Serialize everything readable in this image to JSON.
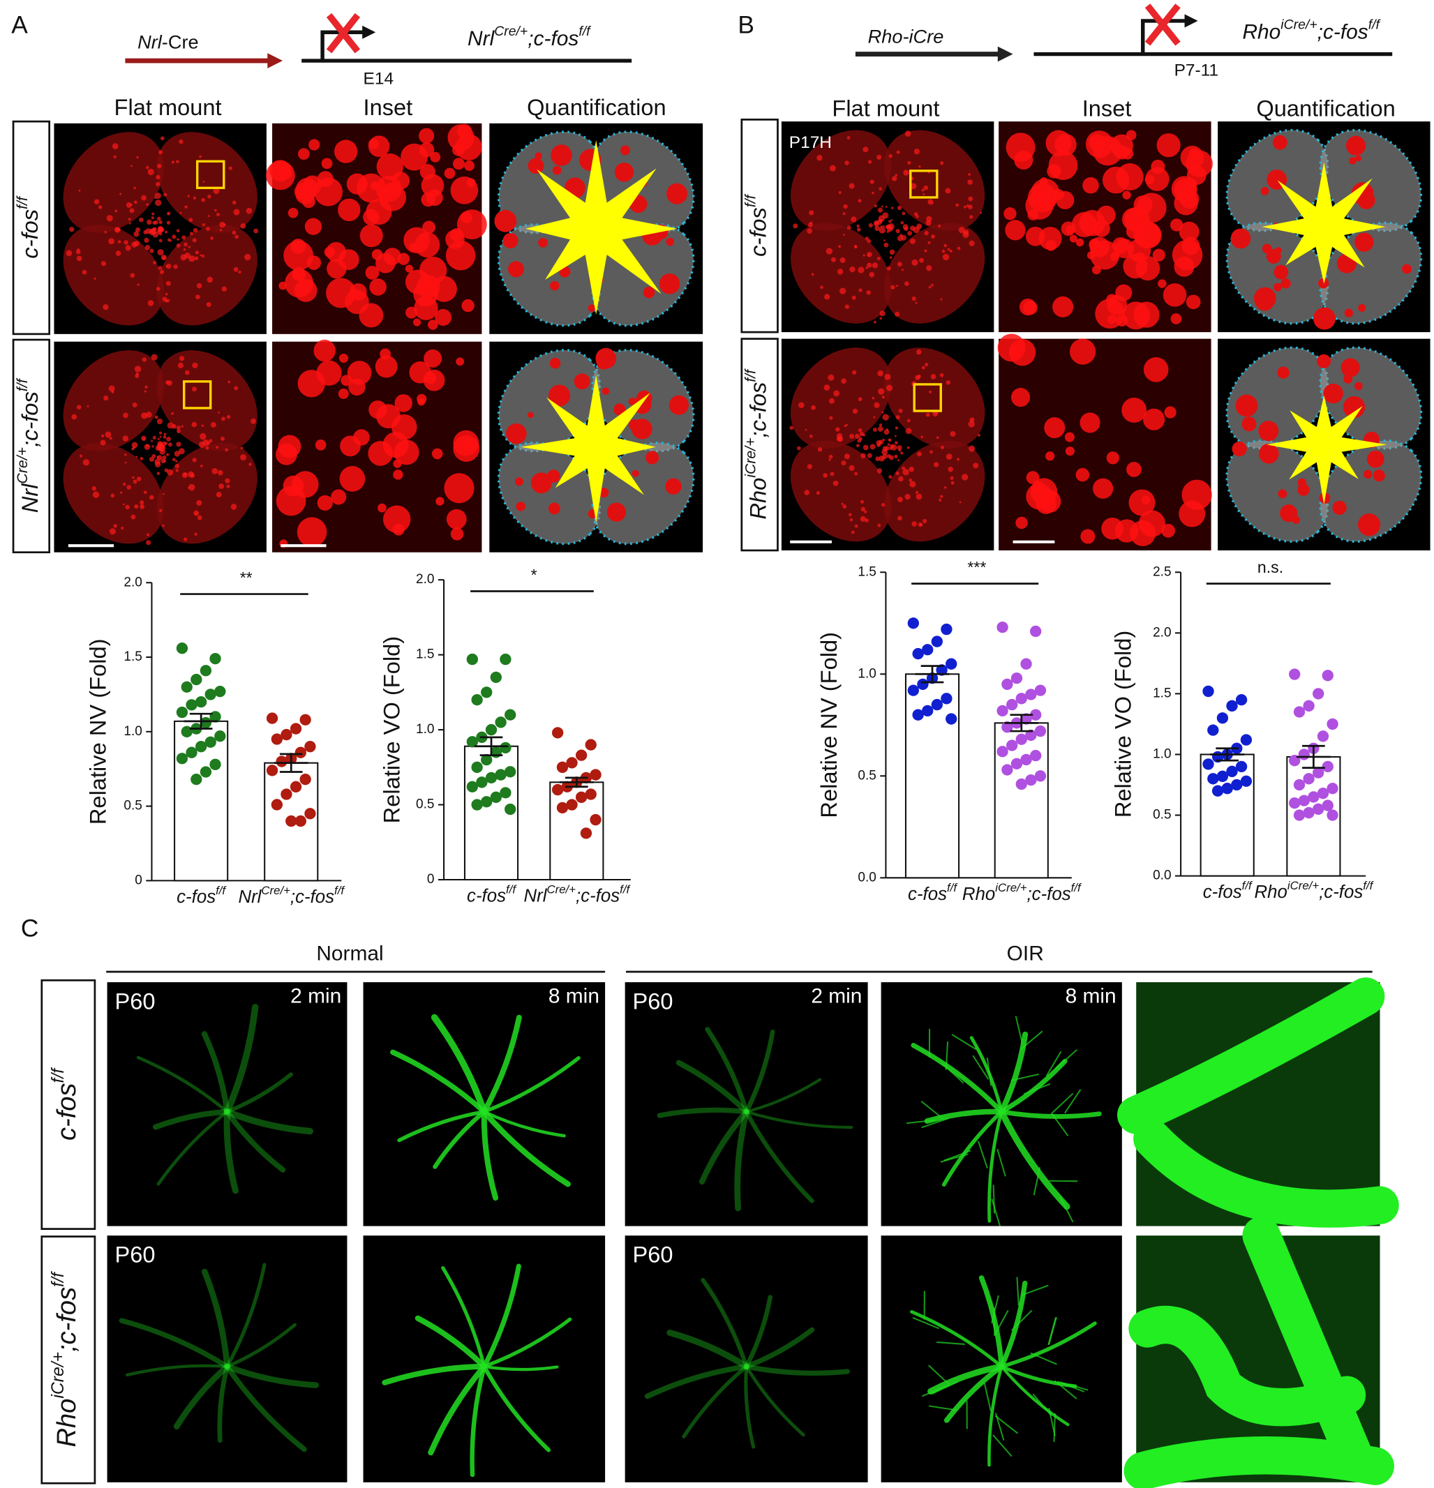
{
  "figure": {
    "panels": [
      {
        "label": "A",
        "driver": [
          {
            "t": "Nrl",
            "i": true
          },
          {
            "t": "-Cre"
          }
        ],
        "genotype": [
          {
            "t": "Nrl",
            "i": true
          },
          {
            "t": "Cre/+",
            "i": true,
            "s": true
          },
          {
            "t": ";c-fos",
            "i": true
          },
          {
            "t": "f/f",
            "i": true,
            "s": true
          }
        ],
        "timepoint": "E14",
        "columns": [
          "Flat mount",
          "Inset",
          "Quantification"
        ],
        "rows": [
          [
            {
              "t": "c-fos",
              "i": true
            },
            {
              "t": "f/f",
              "i": true,
              "s": true
            }
          ],
          [
            {
              "t": "Nrl",
              "i": true
            },
            {
              "t": "Cre/+",
              "i": true,
              "s": true
            },
            {
              "t": ";c-fos",
              "i": true
            },
            {
              "t": "f/f",
              "i": true,
              "s": true
            }
          ]
        ]
      },
      {
        "label": "B",
        "driver": [
          {
            "t": "Rho-iCre",
            "i": true
          }
        ],
        "genotype": [
          {
            "t": "Rho",
            "i": true
          },
          {
            "t": "iCre/+",
            "i": true,
            "s": true
          },
          {
            "t": ";c-fos",
            "i": true
          },
          {
            "t": "f/f",
            "i": true,
            "s": true
          }
        ],
        "timepoint": "P7-11",
        "columns": [
          "Flat mount",
          "Inset",
          "Quantification"
        ],
        "image_tag": "P17H",
        "rows": [
          [
            {
              "t": "c-fos",
              "i": true
            },
            {
              "t": "f/f",
              "i": true,
              "s": true
            }
          ],
          [
            {
              "t": "Rho",
              "i": true
            },
            {
              "t": "iCre/+",
              "i": true,
              "s": true
            },
            {
              "t": ";c-fos",
              "i": true
            },
            {
              "t": "f/f",
              "i": true,
              "s": true
            }
          ]
        ]
      },
      {
        "label": "C",
        "groups": [
          "Normal",
          "OIR"
        ],
        "age": "P60",
        "times": [
          "2 min",
          "8 min"
        ],
        "rows": [
          [
            {
              "t": "c-fos",
              "i": true
            },
            {
              "t": "f/f",
              "i": true,
              "s": true
            }
          ],
          [
            {
              "t": "Rho",
              "i": true
            },
            {
              "t": "iCre/+",
              "i": true,
              "s": true
            },
            {
              "t": ";c-fos",
              "i": true
            },
            {
              "t": "f/f",
              "i": true,
              "s": true
            }
          ]
        ]
      }
    ]
  },
  "chart_data": [
    {
      "type": "bar",
      "ylabel": "Relative NV (Fold)",
      "significance": "**",
      "categories": [
        [
          {
            "t": "c-fos",
            "i": true
          },
          {
            "t": "f/f",
            "i": true,
            "s": true
          }
        ],
        [
          {
            "t": "Nrl",
            "i": true
          },
          {
            "t": "Cre/+",
            "i": true,
            "s": true
          },
          {
            "t": ";c-fos",
            "i": true
          },
          {
            "t": "f/f",
            "i": true,
            "s": true
          }
        ]
      ],
      "means": [
        1.07,
        0.79
      ],
      "sems": [
        0.05,
        0.06
      ],
      "groups": [
        {
          "color": "#1e7b1e",
          "points": [
            1.56,
            1.49,
            1.41,
            1.35,
            1.3,
            1.27,
            1.25,
            1.2,
            1.18,
            1.13,
            1.1,
            1.06,
            1.02,
            1.0,
            0.97,
            0.93,
            0.9,
            0.86,
            0.82,
            0.78,
            0.73,
            0.68
          ]
        },
        {
          "color": "#b01c10",
          "points": [
            1.09,
            1.08,
            1.02,
            0.98,
            0.95,
            0.9,
            0.86,
            0.82,
            0.8,
            0.74,
            0.68,
            0.63,
            0.58,
            0.51,
            0.45,
            0.4,
            0.4
          ]
        }
      ],
      "ylim": [
        0,
        2
      ],
      "yticks": [
        0,
        0.5,
        {
          "value": 1,
          "label": "1.0"
        },
        1.5,
        {
          "value": 2,
          "label": "2.0"
        }
      ]
    },
    {
      "type": "bar",
      "ylabel": "Relative VO (Fold)",
      "significance": "*",
      "categories": [
        [
          {
            "t": "c-fos",
            "i": true
          },
          {
            "t": "f/f",
            "i": true,
            "s": true
          }
        ],
        [
          {
            "t": "Nrl",
            "i": true
          },
          {
            "t": "Cre/+",
            "i": true,
            "s": true
          },
          {
            "t": ";c-fos",
            "i": true
          },
          {
            "t": "f/f",
            "i": true,
            "s": true
          }
        ]
      ],
      "means": [
        0.89,
        0.65
      ],
      "sems": [
        0.06,
        0.03
      ],
      "groups": [
        {
          "color": "#1e7b1e",
          "points": [
            1.47,
            1.47,
            1.35,
            1.25,
            1.2,
            1.1,
            1.05,
            1.0,
            0.95,
            0.92,
            0.88,
            0.85,
            0.8,
            0.75,
            0.72,
            0.7,
            0.68,
            0.65,
            0.62,
            0.58,
            0.55,
            0.52,
            0.5,
            0.47
          ]
        },
        {
          "color": "#b01c10",
          "points": [
            0.98,
            0.9,
            0.83,
            0.78,
            0.75,
            0.7,
            0.68,
            0.65,
            0.62,
            0.6,
            0.57,
            0.55,
            0.5,
            0.48,
            0.4,
            0.31
          ]
        }
      ],
      "ylim": [
        0,
        2
      ],
      "yticks": [
        0,
        0.5,
        {
          "value": 1,
          "label": "1.0"
        },
        1.5,
        {
          "value": 2,
          "label": "2.0"
        }
      ]
    },
    {
      "type": "bar",
      "ylabel": "Relative NV (Fold)",
      "significance": "***",
      "categories": [
        [
          {
            "t": "c-fos",
            "i": true
          },
          {
            "t": "f/f",
            "i": true,
            "s": true
          }
        ],
        [
          {
            "t": "Rho",
            "i": true
          },
          {
            "t": "iCre/+",
            "i": true,
            "s": true
          },
          {
            "t": ";c-fos",
            "i": true
          },
          {
            "t": "f/f",
            "i": true,
            "s": true
          }
        ]
      ],
      "means": [
        1.0,
        0.76
      ],
      "sems": [
        0.04,
        0.04
      ],
      "groups": [
        {
          "color": "#1020d0",
          "points": [
            1.25,
            1.22,
            1.16,
            1.12,
            1.1,
            1.05,
            1.02,
            0.98,
            0.95,
            0.92,
            0.88,
            0.85,
            0.82,
            0.8,
            0.78
          ]
        },
        {
          "color": "#b050e0",
          "points": [
            1.23,
            1.21,
            1.05,
            0.98,
            0.95,
            0.92,
            0.9,
            0.88,
            0.85,
            0.82,
            0.8,
            0.78,
            0.76,
            0.74,
            0.72,
            0.7,
            0.68,
            0.65,
            0.62,
            0.6,
            0.58,
            0.56,
            0.53,
            0.5,
            0.48,
            0.46
          ]
        }
      ],
      "ylim": [
        0,
        1.5
      ],
      "yticks": [
        {
          "value": 0,
          "label": "0.0"
        },
        0.5,
        {
          "value": 1,
          "label": "1.0"
        },
        1.5
      ]
    },
    {
      "type": "bar",
      "ylabel": "Relative VO (Fold)",
      "significance": "n.s.",
      "categories": [
        [
          {
            "t": "c-fos",
            "i": true
          },
          {
            "t": "f/f",
            "i": true,
            "s": true
          }
        ],
        [
          {
            "t": "Rho",
            "i": true
          },
          {
            "t": "iCre/+",
            "i": true,
            "s": true
          },
          {
            "t": ";c-fos",
            "i": true
          },
          {
            "t": "f/f",
            "i": true,
            "s": true
          }
        ]
      ],
      "means": [
        1.0,
        0.98
      ],
      "sems": [
        0.05,
        0.09
      ],
      "groups": [
        {
          "color": "#1020d0",
          "points": [
            1.52,
            1.45,
            1.4,
            1.3,
            1.2,
            1.12,
            1.05,
            1.0,
            0.98,
            0.92,
            0.9,
            0.86,
            0.82,
            0.8,
            0.78,
            0.75,
            0.72,
            0.7
          ]
        },
        {
          "color": "#b050e0",
          "points": [
            1.66,
            1.65,
            1.5,
            1.4,
            1.35,
            1.25,
            1.15,
            1.05,
            1.0,
            0.95,
            0.9,
            0.85,
            0.8,
            0.75,
            0.72,
            0.68,
            0.65,
            0.62,
            0.6,
            0.58,
            0.55,
            0.52,
            0.5,
            0.5
          ]
        }
      ],
      "ylim": [
        0,
        2.5
      ],
      "yticks": [
        {
          "value": 0,
          "label": "0.0"
        },
        0.5,
        {
          "value": 1,
          "label": "1.0"
        },
        1.5,
        {
          "value": 2,
          "label": "2.0"
        },
        2.5
      ]
    }
  ]
}
